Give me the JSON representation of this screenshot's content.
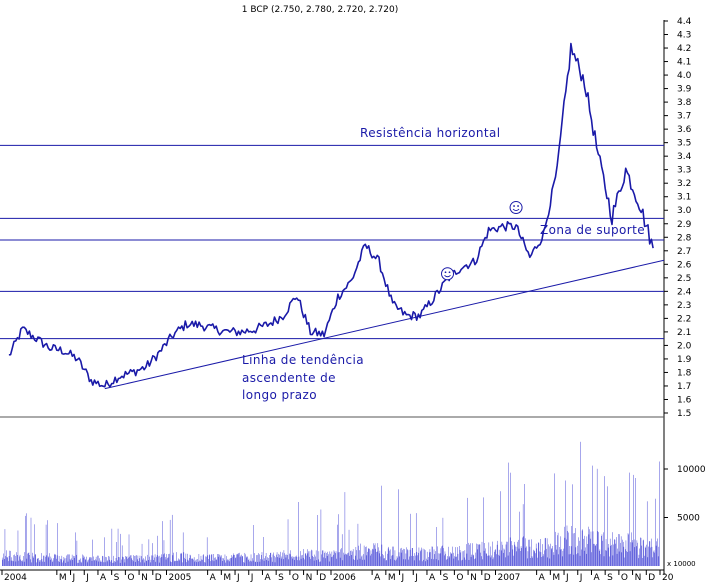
{
  "chart_data": {
    "type": "line",
    "title": "1 BCP (2.750, 2.780, 2.720, 2.720)",
    "price_axis": {
      "ylim": [
        1.5,
        4.4
      ],
      "ticks": [
        "1.5",
        "1.6",
        "1.7",
        "1.8",
        "1.9",
        "2.0",
        "2.1",
        "2.2",
        "2.3",
        "2.4",
        "2.5",
        "2.6",
        "2.7",
        "2.8",
        "2.9",
        "3.0",
        "3.1",
        "3.2",
        "3.3",
        "3.4",
        "3.5",
        "3.6",
        "3.7",
        "3.8",
        "3.9",
        "4.0",
        "4.1",
        "4.2",
        "4.3",
        "4.4"
      ]
    },
    "volume_axis": {
      "ylim": [
        0,
        13000
      ],
      "ticks": [
        "5000",
        "10000"
      ],
      "unit_label": "x 10000"
    },
    "time_axis": {
      "start": "2004-01",
      "end": "2007-12",
      "labels": [
        "2004",
        "M",
        "J",
        "J",
        "A",
        "S",
        "O",
        "N",
        "D",
        "2005",
        "A",
        "M",
        "J",
        "J",
        "A",
        "S",
        "O",
        "N",
        "D",
        "2006",
        "A",
        "M",
        "J",
        "J",
        "A",
        "S",
        "O",
        "N",
        "D",
        "2007",
        "A",
        "M",
        "J",
        "J",
        "A",
        "S",
        "O",
        "N",
        "D",
        "20"
      ]
    },
    "price_series": {
      "name": "BCP",
      "points": [
        [
          "2004-01",
          1.92
        ],
        [
          "2004-02",
          2.12
        ],
        [
          "2004-03",
          2.05
        ],
        [
          "2004-04",
          1.98
        ],
        [
          "2004-05",
          1.96
        ],
        [
          "2004-06",
          1.9
        ],
        [
          "2004-07",
          1.74
        ],
        [
          "2004-08",
          1.7
        ],
        [
          "2004-09",
          1.77
        ],
        [
          "2004-10",
          1.8
        ],
        [
          "2004-11",
          1.84
        ],
        [
          "2004-12",
          1.95
        ],
        [
          "2005-01",
          2.08
        ],
        [
          "2005-02",
          2.16
        ],
        [
          "2005-03",
          2.15
        ],
        [
          "2005-04",
          2.12
        ],
        [
          "2005-05",
          2.1
        ],
        [
          "2005-06",
          2.1
        ],
        [
          "2005-07",
          2.12
        ],
        [
          "2005-08",
          2.16
        ],
        [
          "2005-09",
          2.22
        ],
        [
          "2005-10",
          2.37
        ],
        [
          "2005-11",
          2.1
        ],
        [
          "2005-12",
          2.08
        ],
        [
          "2006-01",
          2.36
        ],
        [
          "2006-02",
          2.48
        ],
        [
          "2006-03",
          2.74
        ],
        [
          "2006-04",
          2.62
        ],
        [
          "2006-05",
          2.3
        ],
        [
          "2006-06",
          2.22
        ],
        [
          "2006-07",
          2.22
        ],
        [
          "2006-08",
          2.35
        ],
        [
          "2006-09",
          2.49
        ],
        [
          "2006-10",
          2.58
        ],
        [
          "2006-11",
          2.62
        ],
        [
          "2006-12",
          2.85
        ],
        [
          "2007-01",
          2.88
        ],
        [
          "2007-02",
          2.88
        ],
        [
          "2007-03",
          2.65
        ],
        [
          "2007-04",
          2.82
        ],
        [
          "2007-05",
          3.3
        ],
        [
          "2007-06",
          4.2
        ],
        [
          "2007-07",
          3.95
        ],
        [
          "2007-08",
          3.4
        ],
        [
          "2007-09",
          2.95
        ],
        [
          "2007-10",
          3.3
        ],
        [
          "2007-11",
          3.05
        ],
        [
          "2007-12",
          2.72
        ]
      ]
    },
    "volume_series": {
      "name": "Volume",
      "levels": [
        1400,
        1300,
        1200,
        1100,
        1000,
        1000,
        900,
        900,
        900,
        950,
        1000,
        1100,
        1200,
        1200,
        1100,
        1100,
        1100,
        1150,
        1200,
        1200,
        1400,
        1600,
        1500,
        1400,
        1600,
        1800,
        2000,
        2000,
        1800,
        1700,
        1600,
        1700,
        1800,
        1900,
        2000,
        2100,
        2400,
        2500,
        2600,
        2500,
        3100,
        3500,
        3400,
        3200,
        3000,
        2900,
        2600,
        2400
      ]
    },
    "horizontal_lines": [
      {
        "value": 3.48,
        "label": "Resistência horizontal"
      },
      {
        "value": 2.94
      },
      {
        "value": 2.78
      },
      {
        "value": 2.4
      },
      {
        "value": 2.05
      }
    ],
    "trendline": {
      "from": [
        "2004-08",
        1.68
      ],
      "to": [
        "2007-12",
        2.63
      ],
      "label_lines": [
        "Linha de tendência",
        "ascendente de",
        "longo prazo"
      ]
    },
    "zone_label": "Zona de suporte",
    "smiley_markers": [
      {
        "date": "2006-09",
        "value": 2.53
      },
      {
        "date": "2007-02",
        "value": 3.02
      }
    ],
    "colors": {
      "series": "#1a1aa8",
      "volume": "#2a2ad0",
      "lines": "#1a1aa8",
      "annotation": "#1a1aa8",
      "axis": "#000000"
    }
  }
}
